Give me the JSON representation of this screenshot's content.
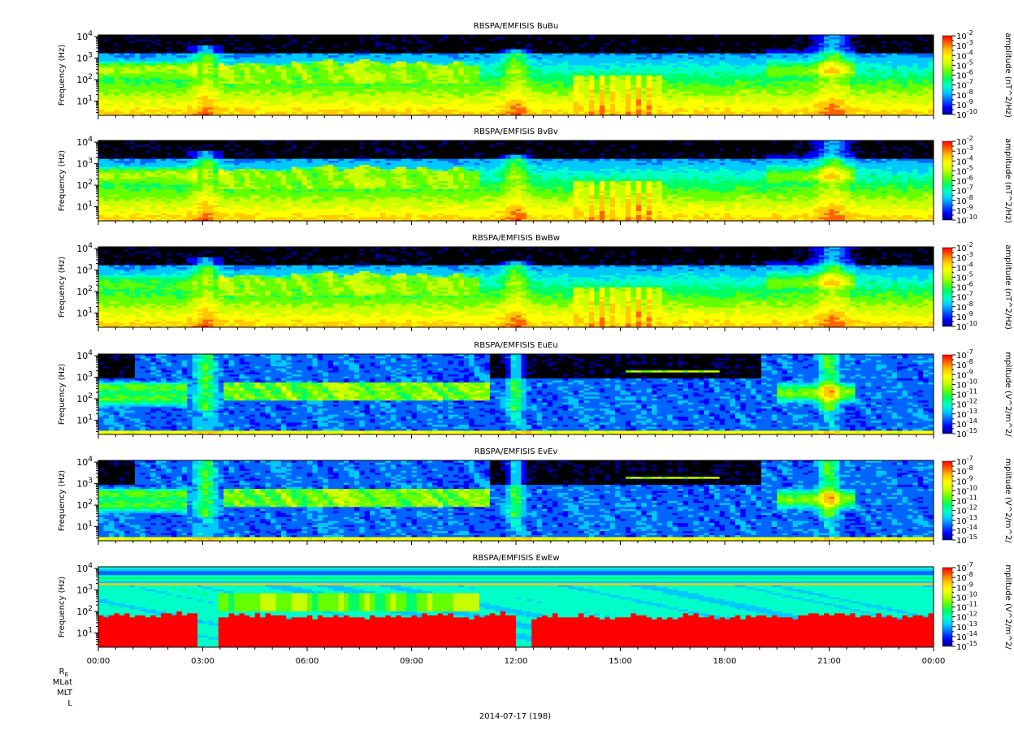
{
  "figure": {
    "date_label": "2014-07-17 (198)",
    "ephemeris_labels": [
      "R",
      "MLat",
      "MLT",
      "L"
    ],
    "ephemeris_re_subscript": "E"
  },
  "chart_data": [
    {
      "type": "heatmap",
      "title": "RBSPA/EMFISIS  BuBu",
      "ylabel": "Frequency (Hz)",
      "yscale": "log",
      "ylim": [
        2.2,
        12000
      ],
      "y_ticks": [
        {
          "base": "10",
          "exp": "4"
        },
        {
          "base": "10",
          "exp": "3"
        },
        {
          "base": "10",
          "exp": "2"
        },
        {
          "base": "10",
          "exp": "1"
        }
      ],
      "colorbar": {
        "label": "amplitude (nT^2/Hz)",
        "scale": "log",
        "ticks": [
          {
            "base": "10",
            "exp": "-2"
          },
          {
            "base": "10",
            "exp": "-3"
          },
          {
            "base": "10",
            "exp": "-4"
          },
          {
            "base": "10",
            "exp": "-5"
          },
          {
            "base": "10",
            "exp": "-6"
          },
          {
            "base": "10",
            "exp": "-7"
          },
          {
            "base": "10",
            "exp": "-8"
          },
          {
            "base": "10",
            "exp": "-9"
          },
          {
            "base": "10",
            "exp": "-10"
          }
        ]
      },
      "x_tick_labels": []
    },
    {
      "type": "heatmap",
      "title": "RBSPA/EMFISIS  BvBv",
      "ylabel": "Frequency (Hz)",
      "yscale": "log",
      "ylim": [
        2.2,
        12000
      ],
      "y_ticks": [
        {
          "base": "10",
          "exp": "4"
        },
        {
          "base": "10",
          "exp": "3"
        },
        {
          "base": "10",
          "exp": "2"
        },
        {
          "base": "10",
          "exp": "1"
        }
      ],
      "colorbar": {
        "label": "amplitude (nT^2/Hz)",
        "scale": "log",
        "ticks": [
          {
            "base": "10",
            "exp": "-2"
          },
          {
            "base": "10",
            "exp": "-3"
          },
          {
            "base": "10",
            "exp": "-4"
          },
          {
            "base": "10",
            "exp": "-5"
          },
          {
            "base": "10",
            "exp": "-6"
          },
          {
            "base": "10",
            "exp": "-7"
          },
          {
            "base": "10",
            "exp": "-8"
          },
          {
            "base": "10",
            "exp": "-9"
          },
          {
            "base": "10",
            "exp": "-10"
          }
        ]
      },
      "x_tick_labels": []
    },
    {
      "type": "heatmap",
      "title": "RBSPA/EMFISIS  BwBw",
      "ylabel": "Frequency (Hz)",
      "yscale": "log",
      "ylim": [
        2.2,
        12000
      ],
      "y_ticks": [
        {
          "base": "10",
          "exp": "4"
        },
        {
          "base": "10",
          "exp": "3"
        },
        {
          "base": "10",
          "exp": "2"
        },
        {
          "base": "10",
          "exp": "1"
        }
      ],
      "colorbar": {
        "label": "amplitude (nT^2/Hz)",
        "scale": "log",
        "ticks": [
          {
            "base": "10",
            "exp": "-2"
          },
          {
            "base": "10",
            "exp": "-3"
          },
          {
            "base": "10",
            "exp": "-4"
          },
          {
            "base": "10",
            "exp": "-5"
          },
          {
            "base": "10",
            "exp": "-6"
          },
          {
            "base": "10",
            "exp": "-7"
          },
          {
            "base": "10",
            "exp": "-8"
          },
          {
            "base": "10",
            "exp": "-9"
          },
          {
            "base": "10",
            "exp": "-10"
          }
        ]
      },
      "x_tick_labels": []
    },
    {
      "type": "heatmap",
      "title": "RBSPA/EMFISIS  EuEu",
      "ylabel": "Frequency (Hz)",
      "yscale": "log",
      "ylim": [
        2.2,
        12000
      ],
      "y_ticks": [
        {
          "base": "10",
          "exp": "4"
        },
        {
          "base": "10",
          "exp": "3"
        },
        {
          "base": "10",
          "exp": "2"
        },
        {
          "base": "10",
          "exp": "1"
        }
      ],
      "colorbar": {
        "label": "mplitude (V^2/m^2/",
        "scale": "log",
        "ticks": [
          {
            "base": "10",
            "exp": "-7"
          },
          {
            "base": "10",
            "exp": "-8"
          },
          {
            "base": "10",
            "exp": "-9"
          },
          {
            "base": "10",
            "exp": "-10"
          },
          {
            "base": "10",
            "exp": "-11"
          },
          {
            "base": "10",
            "exp": "-12"
          },
          {
            "base": "10",
            "exp": "-13"
          },
          {
            "base": "10",
            "exp": "-14"
          },
          {
            "base": "10",
            "exp": "-15"
          }
        ]
      },
      "x_tick_labels": []
    },
    {
      "type": "heatmap",
      "title": "RBSPA/EMFISIS  EvEv",
      "ylabel": "Frequency (Hz)",
      "yscale": "log",
      "ylim": [
        2.2,
        12000
      ],
      "y_ticks": [
        {
          "base": "10",
          "exp": "4"
        },
        {
          "base": "10",
          "exp": "3"
        },
        {
          "base": "10",
          "exp": "2"
        },
        {
          "base": "10",
          "exp": "1"
        }
      ],
      "colorbar": {
        "label": "mplitude (V^2/m^2/",
        "scale": "log",
        "ticks": [
          {
            "base": "10",
            "exp": "-7"
          },
          {
            "base": "10",
            "exp": "-8"
          },
          {
            "base": "10",
            "exp": "-9"
          },
          {
            "base": "10",
            "exp": "-10"
          },
          {
            "base": "10",
            "exp": "-11"
          },
          {
            "base": "10",
            "exp": "-12"
          },
          {
            "base": "10",
            "exp": "-13"
          },
          {
            "base": "10",
            "exp": "-14"
          },
          {
            "base": "10",
            "exp": "-15"
          }
        ]
      },
      "x_tick_labels": []
    },
    {
      "type": "heatmap",
      "title": "RBSPA/EMFISIS  EwEw",
      "ylabel": "Frequency (Hz)",
      "yscale": "log",
      "ylim": [
        2.2,
        12000
      ],
      "y_ticks": [
        {
          "base": "10",
          "exp": "4"
        },
        {
          "base": "10",
          "exp": "3"
        },
        {
          "base": "10",
          "exp": "2"
        },
        {
          "base": "10",
          "exp": "1"
        }
      ],
      "colorbar": {
        "label": "mplitude (V^2/m^2/",
        "scale": "log",
        "ticks": [
          {
            "base": "10",
            "exp": "-7"
          },
          {
            "base": "10",
            "exp": "-8"
          },
          {
            "base": "10",
            "exp": "-9"
          },
          {
            "base": "10",
            "exp": "-10"
          },
          {
            "base": "10",
            "exp": "-11"
          },
          {
            "base": "10",
            "exp": "-12"
          },
          {
            "base": "10",
            "exp": "-13"
          },
          {
            "base": "10",
            "exp": "-14"
          },
          {
            "base": "10",
            "exp": "-15"
          }
        ]
      },
      "x_tick_labels": [
        "00:00",
        "03:00",
        "06:00",
        "09:00",
        "12:00",
        "15:00",
        "18:00",
        "21:00",
        "00:00"
      ]
    }
  ],
  "colors": {
    "palette": [
      "#00008c",
      "#0000ff",
      "#0064ff",
      "#00c8ff",
      "#00ffc8",
      "#00ff64",
      "#64ff00",
      "#c8ff00",
      "#ffff00",
      "#ffc800",
      "#ff6400",
      "#ff0000"
    ],
    "empty": "#000000",
    "text": "#000000",
    "frame": "#000000"
  }
}
